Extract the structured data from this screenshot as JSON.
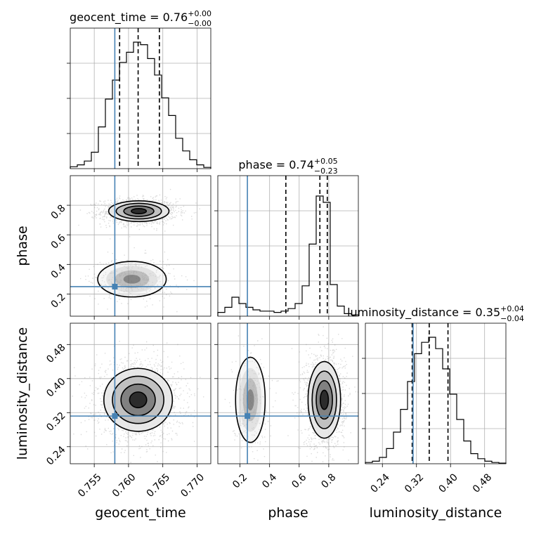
{
  "chart_data": {
    "type": "corner",
    "colors": {
      "truth": "#4682b4",
      "hist": "#000000",
      "grid": "#b0b0b0",
      "scatter": "#7f7f7f"
    },
    "parameters": [
      {
        "name": "geocent_time",
        "range": [
          0.7515,
          0.772
        ],
        "ticks": [
          0.755,
          0.76,
          0.765,
          0.77
        ],
        "tick_labels": [
          "0.755",
          "0.760",
          "0.765",
          "0.770"
        ],
        "truth": 0.758,
        "quantiles": [
          0.7587,
          0.7614,
          0.7645
        ],
        "title": {
          "main": "geocent_time = 0.76",
          "sup": "+0.00",
          "sub": "−0.00"
        },
        "hist": [
          0.015,
          0.03,
          0.06,
          0.13,
          0.33,
          0.55,
          0.7,
          0.84,
          0.92,
          1.0,
          0.98,
          0.87,
          0.74,
          0.56,
          0.42,
          0.24,
          0.14,
          0.07,
          0.03,
          0.01
        ]
      },
      {
        "name": "phase",
        "range": [
          0.05,
          1.0
        ],
        "ticks": [
          0.2,
          0.4,
          0.6,
          0.8
        ],
        "tick_labels": [
          "0.2",
          "0.4",
          "0.6",
          "0.8"
        ],
        "truth": 0.25,
        "quantiles": [
          0.51,
          0.74,
          0.79
        ],
        "title": {
          "main": "phase = 0.74",
          "sup": "+0.05",
          "sub": "−0.23"
        },
        "hist": [
          0.03,
          0.07,
          0.15,
          0.1,
          0.07,
          0.05,
          0.04,
          0.04,
          0.03,
          0.04,
          0.06,
          0.1,
          0.24,
          0.57,
          0.95,
          0.9,
          0.25,
          0.08,
          0.02,
          0.01
        ]
      },
      {
        "name": "luminosity_distance",
        "range": [
          0.2,
          0.53
        ],
        "ticks": [
          0.24,
          0.32,
          0.4,
          0.48
        ],
        "tick_labels": [
          "0.24",
          "0.32",
          "0.40",
          "0.48"
        ],
        "truth": 0.312,
        "quantiles": [
          0.31,
          0.35,
          0.394
        ],
        "title": {
          "main": "luminosity_distance = 0.35",
          "sup": "+0.04",
          "sub": "−0.04"
        },
        "hist": [
          0.01,
          0.02,
          0.05,
          0.12,
          0.25,
          0.43,
          0.65,
          0.87,
          0.96,
          1.0,
          0.91,
          0.75,
          0.55,
          0.35,
          0.18,
          0.08,
          0.04,
          0.02,
          0.01,
          0.005
        ]
      }
    ],
    "contours_2d": [
      {
        "x": "geocent_time",
        "y": "phase",
        "blobs": [
          {
            "cx": 0.7615,
            "cy": 0.76,
            "sx": 0.0022,
            "sy": 0.035,
            "w": 1.0
          },
          {
            "cx": 0.7605,
            "cy": 0.3,
            "sx": 0.0025,
            "sy": 0.06,
            "w": 0.25
          }
        ]
      },
      {
        "x": "geocent_time",
        "y": "luminosity_distance",
        "blobs": [
          {
            "cx": 0.7614,
            "cy": 0.35,
            "sx": 0.0025,
            "sy": 0.037,
            "w": 1.0
          }
        ]
      },
      {
        "x": "phase",
        "y": "luminosity_distance",
        "blobs": [
          {
            "cx": 0.77,
            "cy": 0.35,
            "sx": 0.055,
            "sy": 0.045,
            "w": 1.0
          },
          {
            "cx": 0.27,
            "cy": 0.35,
            "sx": 0.05,
            "sy": 0.05,
            "w": 0.15
          }
        ]
      }
    ]
  }
}
